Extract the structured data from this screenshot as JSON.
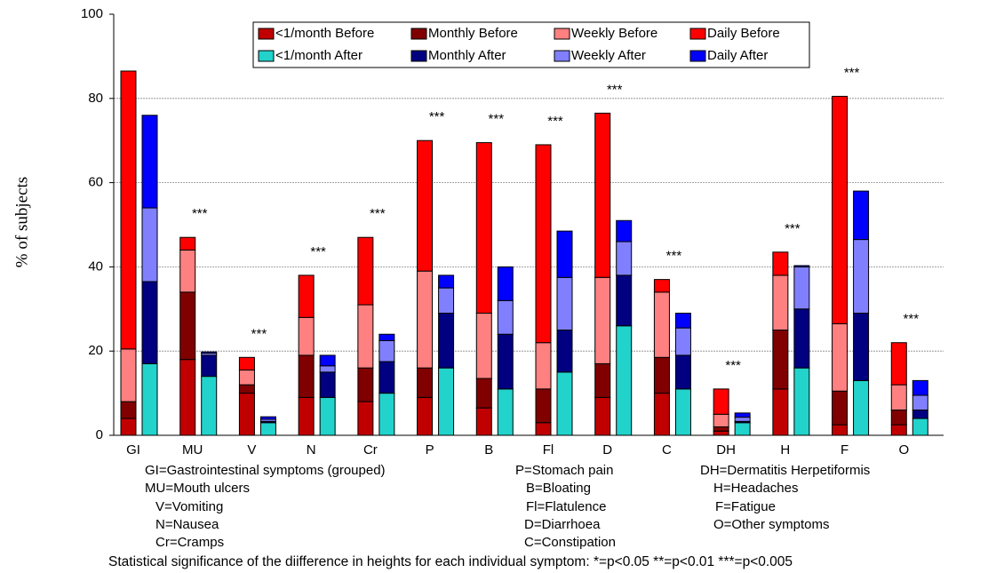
{
  "chart_data": {
    "type": "stacked-bar",
    "y_label": "% of subjects",
    "categories": [
      "GI",
      "MU",
      "V",
      "N",
      "Cr",
      "P",
      "B",
      "Fl",
      "D",
      "C",
      "DH",
      "H",
      "F",
      "O"
    ],
    "series": [
      {
        "name": "<1/month Before",
        "color": "#c00000",
        "stack": 0,
        "values": [
          4,
          18,
          10,
          9,
          8,
          9,
          6.5,
          3,
          9,
          10,
          1,
          11,
          2.5,
          2.5
        ]
      },
      {
        "name": "Monthly Before",
        "color": "#800000",
        "stack": 0,
        "values": [
          4,
          16,
          2,
          10,
          8,
          7,
          7,
          8,
          8,
          8.5,
          1,
          14,
          8,
          3.5
        ]
      },
      {
        "name": "Weekly Before",
        "color": "#ff8080",
        "stack": 0,
        "values": [
          12.5,
          10,
          3.5,
          9,
          15,
          23,
          15.5,
          11,
          20.5,
          15.5,
          3,
          13,
          16,
          6
        ]
      },
      {
        "name": "Daily Before",
        "color": "#ff0000",
        "stack": 0,
        "values": [
          66,
          3,
          3,
          10,
          16,
          31,
          40.5,
          47,
          39,
          3,
          6,
          5.5,
          54,
          10
        ]
      },
      {
        "name": "<1/month After",
        "color": "#22d3cc",
        "stack": 1,
        "values": [
          17,
          14,
          3,
          9,
          10,
          16,
          11,
          15,
          26,
          11,
          3,
          16,
          13,
          4
        ]
      },
      {
        "name": "Monthly After",
        "color": "#000080",
        "stack": 1,
        "values": [
          19.5,
          5,
          0.3,
          6,
          7.5,
          13,
          13,
          10,
          12,
          8,
          0.3,
          14,
          16,
          2
        ]
      },
      {
        "name": "Weekly After",
        "color": "#8080ff",
        "stack": 1,
        "values": [
          17.5,
          0.5,
          0.5,
          1.5,
          5,
          6,
          8,
          12.5,
          8,
          6.5,
          1,
          10,
          17.5,
          3.5
        ]
      },
      {
        "name": "Daily After",
        "color": "#0000ff",
        "stack": 1,
        "values": [
          22,
          0.3,
          0.6,
          2.5,
          1.5,
          3,
          8,
          11,
          5,
          3.5,
          1,
          0.3,
          11.5,
          3.5
        ]
      }
    ],
    "significance": [
      null,
      "***",
      "***",
      "***",
      "***",
      "***",
      "***",
      "***",
      "***",
      "***",
      "***",
      "***",
      "***",
      "***"
    ],
    "ylim": [
      0,
      100
    ],
    "yticks": [
      0,
      20,
      40,
      60,
      80,
      100
    ],
    "grid": true,
    "notes": [
      "GI=Gastrointestinal symptoms (grouped)",
      "MU=Mouth ulcers",
      "V=Vomiting",
      "N=Nausea",
      "Cr=Cramps",
      "P=Stomach pain",
      "B=Bloating",
      "Fl=Flatulence",
      "D=Diarrhoea",
      "C=Constipation",
      "DH=Dermatitis Herpetiformis",
      "H=Headaches",
      "F=Fatigue",
      "O=Other symptoms"
    ],
    "footnote": "Statistical significance of the diifference in heights for each individual symptom: *=p<0.05  **=p<0.01  ***=p<0.005"
  }
}
